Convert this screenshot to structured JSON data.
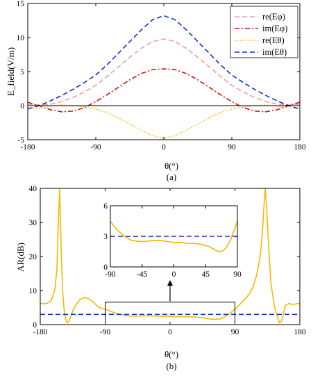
{
  "chart_data": [
    {
      "type": "line",
      "panel_label": "(a)",
      "xlabel": "θ(°)",
      "ylabel": "E_field(V/m)",
      "xlim": [
        -180,
        180
      ],
      "ylim": [
        -5,
        15
      ],
      "xticks": [
        "-180",
        "-90",
        "0",
        "90",
        "180"
      ],
      "yticks": [
        "-5",
        "0",
        "5",
        "10",
        "15"
      ],
      "legend_position": "top-right",
      "grid": false,
      "zero_line": true,
      "series": [
        {
          "name": "re(Eφ)",
          "color": "#e8a0a0",
          "dash": "dashed",
          "x": [
            -180,
            -165,
            -150,
            -135,
            -120,
            -105,
            -90,
            -75,
            -60,
            -45,
            -30,
            -15,
            0,
            15,
            30,
            45,
            60,
            75,
            90,
            105,
            120,
            135,
            150,
            165,
            180
          ],
          "y": [
            0.2,
            0.1,
            0.2,
            0.6,
            1.2,
            2.0,
            3.0,
            4.3,
            5.7,
            7.1,
            8.4,
            9.4,
            9.8,
            9.4,
            8.4,
            7.1,
            5.7,
            4.3,
            3.0,
            2.0,
            1.2,
            0.6,
            0.2,
            0.1,
            0.2
          ]
        },
        {
          "name": "im(Eφ)",
          "color": "#d01010",
          "dash": "dashdot",
          "x": [
            -180,
            -165,
            -150,
            -135,
            -120,
            -105,
            -90,
            -75,
            -60,
            -45,
            -30,
            -15,
            0,
            15,
            30,
            45,
            60,
            75,
            90,
            105,
            120,
            135,
            150,
            165,
            180
          ],
          "y": [
            0.5,
            0.0,
            -0.6,
            -0.9,
            -0.8,
            -0.3,
            0.6,
            1.6,
            2.7,
            3.8,
            4.7,
            5.3,
            5.4,
            5.3,
            4.7,
            3.8,
            2.7,
            1.6,
            0.6,
            -0.3,
            -0.8,
            -0.9,
            -0.6,
            0.0,
            0.5
          ]
        },
        {
          "name": "re(Eθ)",
          "color": "#f5b800",
          "dash": "dotted",
          "x": [
            -180,
            -165,
            -150,
            -135,
            -120,
            -105,
            -90,
            -75,
            -60,
            -45,
            -30,
            -15,
            0,
            15,
            30,
            45,
            60,
            75,
            90,
            105,
            120,
            135,
            150,
            165,
            180
          ],
          "y": [
            -0.3,
            -0.4,
            -0.1,
            0.1,
            0.0,
            -0.2,
            -0.5,
            -1.0,
            -1.8,
            -2.7,
            -3.6,
            -4.4,
            -4.8,
            -4.4,
            -3.6,
            -2.7,
            -1.8,
            -1.0,
            -0.5,
            -0.2,
            0.0,
            0.1,
            -0.1,
            -0.4,
            -0.3
          ]
        },
        {
          "name": "im(Eθ)",
          "color": "#1030c8",
          "dash": "dashed",
          "x": [
            -180,
            -165,
            -150,
            -135,
            -120,
            -105,
            -90,
            -75,
            -60,
            -45,
            -30,
            -15,
            0,
            15,
            30,
            45,
            60,
            75,
            90,
            105,
            120,
            135,
            150,
            165,
            180
          ],
          "y": [
            -0.5,
            0.0,
            0.7,
            1.5,
            2.4,
            3.4,
            4.5,
            6.0,
            7.7,
            9.4,
            11.1,
            12.6,
            13.2,
            12.6,
            11.1,
            9.4,
            7.7,
            6.0,
            4.5,
            3.4,
            2.4,
            1.5,
            0.7,
            0.0,
            -0.5
          ]
        }
      ]
    },
    {
      "type": "line",
      "panel_label": "(b)",
      "xlabel": "θ(°)",
      "ylabel": "AR(dB)",
      "xlim": [
        -180,
        180
      ],
      "ylim": [
        0,
        40
      ],
      "xticks": [
        "-180",
        "-90",
        "0",
        "90",
        "180"
      ],
      "yticks": [
        "0",
        "10",
        "20",
        "30",
        "40"
      ],
      "grid": false,
      "series": [
        {
          "name": "",
          "color": "#f5b800",
          "dash": "solid",
          "x": [
            -180,
            -175,
            -170,
            -165,
            -160,
            -157,
            -155,
            -153,
            -151,
            -149,
            -147,
            -145,
            -143,
            -140,
            -135,
            -130,
            -125,
            -120,
            -115,
            -110,
            -105,
            -100,
            -95,
            -90,
            -75,
            -60,
            -45,
            -30,
            -15,
            0,
            15,
            30,
            45,
            60,
            70,
            80,
            90,
            100,
            110,
            115,
            120,
            125,
            128,
            130,
            132,
            134,
            137,
            140,
            145,
            150,
            152,
            154,
            156,
            158,
            160,
            165,
            170,
            175,
            180
          ],
          "y": [
            6.2,
            6.1,
            6.3,
            7.0,
            10.0,
            16.0,
            30.0,
            40.0,
            22.0,
            10.0,
            4.5,
            2.0,
            0.5,
            1.0,
            4.0,
            6.0,
            7.3,
            7.9,
            7.8,
            7.2,
            6.3,
            5.3,
            4.7,
            4.5,
            3.3,
            2.6,
            2.5,
            2.6,
            2.5,
            2.4,
            2.3,
            2.3,
            2.0,
            1.5,
            1.7,
            2.8,
            4.5,
            6.6,
            9.0,
            11.0,
            14.5,
            20.0,
            27.0,
            34.0,
            40.0,
            34.0,
            22.0,
            12.0,
            5.0,
            1.6,
            0.5,
            0.8,
            2.0,
            4.0,
            5.6,
            6.2,
            5.9,
            6.1,
            6.2
          ]
        },
        {
          "name": "",
          "color": "#1030c8",
          "dash": "dashed",
          "x": [
            -180,
            180
          ],
          "y": [
            3,
            3
          ]
        }
      ],
      "highlight_box": {
        "x": [
          -90,
          90
        ],
        "y": [
          0,
          6.6
        ]
      },
      "inset": {
        "xlim": [
          -90,
          90
        ],
        "ylim": [
          0,
          6
        ],
        "xticks": [
          "-90",
          "-45",
          "0",
          "45",
          "90"
        ],
        "yticks": [
          "0",
          "3",
          "6"
        ],
        "series": [
          {
            "color": "#f5b800",
            "dash": "solid",
            "x": [
              -90,
              -85,
              -80,
              -75,
              -70,
              -65,
              -60,
              -50,
              -40,
              -30,
              -20,
              -10,
              0,
              10,
              20,
              30,
              40,
              50,
              60,
              65,
              70,
              75,
              80,
              85,
              90
            ],
            "y": [
              4.5,
              4.0,
              3.6,
              3.3,
              3.0,
              2.8,
              2.6,
              2.5,
              2.5,
              2.6,
              2.6,
              2.5,
              2.4,
              2.4,
              2.3,
              2.3,
              2.2,
              2.0,
              1.6,
              1.5,
              1.6,
              2.0,
              2.6,
              3.5,
              4.5
            ]
          },
          {
            "color": "#1030c8",
            "dash": "dashed",
            "x": [
              -90,
              90
            ],
            "y": [
              3,
              3
            ]
          }
        ]
      }
    }
  ]
}
